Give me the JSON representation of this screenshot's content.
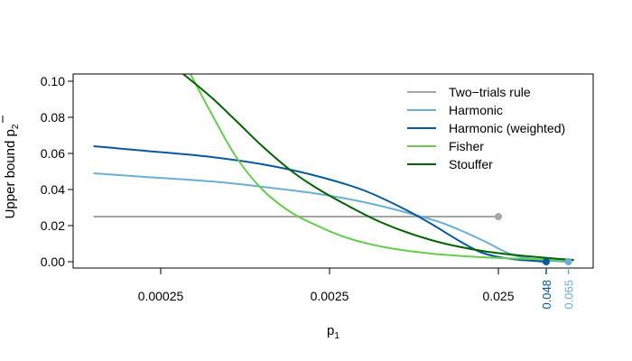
{
  "chart_data": {
    "type": "line",
    "title": "",
    "xlabel": "p",
    "xlabel_sub": "1",
    "ylabel": "Upper bound p",
    "ylabel_sub": "2",
    "x_scale": "log",
    "xlim": [
      9.5e-05,
      0.07
    ],
    "ylim": [
      0,
      0.1
    ],
    "x_ticks": [
      {
        "value": 0.00025,
        "label": "0.00025"
      },
      {
        "value": 0.0025,
        "label": "0.0025"
      },
      {
        "value": 0.025,
        "label": "0.025"
      }
    ],
    "y_ticks": [
      {
        "value": 0.0,
        "label": "0.00"
      },
      {
        "value": 0.02,
        "label": "0.02"
      },
      {
        "value": 0.04,
        "label": "0.04"
      },
      {
        "value": 0.06,
        "label": "0.06"
      },
      {
        "value": 0.08,
        "label": "0.08"
      },
      {
        "value": 0.1,
        "label": "0.10"
      }
    ],
    "grid": false,
    "legend_position": "top-right",
    "series": [
      {
        "name": "Two−trials rule",
        "color": "#a6a6a6",
        "x": [
          0.0001,
          0.025
        ],
        "y": [
          0.025,
          0.025
        ],
        "end_marker": {
          "x": 0.025,
          "y": 0.025
        }
      },
      {
        "name": "Harmonic",
        "color": "#6baed6",
        "x": [
          0.0001,
          0.0002,
          0.0005,
          0.001,
          0.002,
          0.004,
          0.008,
          0.012,
          0.02,
          0.03,
          0.04,
          0.05,
          0.065
        ],
        "y": [
          0.049,
          0.047,
          0.0445,
          0.0415,
          0.038,
          0.033,
          0.026,
          0.021,
          0.012,
          0.004,
          0.0015,
          0.0005,
          0.0
        ]
      },
      {
        "name": "Harmonic (weighted)",
        "color": "#08589e",
        "x": [
          0.0001,
          0.0002,
          0.0005,
          0.001,
          0.002,
          0.004,
          0.007,
          0.01,
          0.015,
          0.02,
          0.03,
          0.04,
          0.048
        ],
        "y": [
          0.064,
          0.0615,
          0.058,
          0.054,
          0.048,
          0.0395,
          0.029,
          0.021,
          0.011,
          0.005,
          0.0015,
          0.0005,
          0.0
        ]
      },
      {
        "name": "Fisher",
        "color": "#66cc4d",
        "x": [
          0.00037,
          0.0005,
          0.0007,
          0.001,
          0.0015,
          0.002,
          0.003,
          0.005,
          0.01,
          0.02,
          0.05,
          0.07
        ],
        "y": [
          0.105,
          0.082,
          0.058,
          0.04,
          0.027,
          0.021,
          0.014,
          0.0085,
          0.0045,
          0.0025,
          0.0012,
          0.0008
        ]
      },
      {
        "name": "Stouffer",
        "color": "#006400",
        "x": [
          0.00033,
          0.0005,
          0.0007,
          0.001,
          0.0015,
          0.002,
          0.003,
          0.005,
          0.01,
          0.02,
          0.05,
          0.07
        ],
        "y": [
          0.105,
          0.091,
          0.078,
          0.064,
          0.05,
          0.042,
          0.0325,
          0.022,
          0.012,
          0.006,
          0.002,
          0.001
        ]
      }
    ],
    "annotations": [
      {
        "x": 0.048,
        "label": "0.048",
        "color": "#08589e"
      },
      {
        "x": 0.065,
        "label": "0.065",
        "color": "#6baed6"
      }
    ]
  }
}
